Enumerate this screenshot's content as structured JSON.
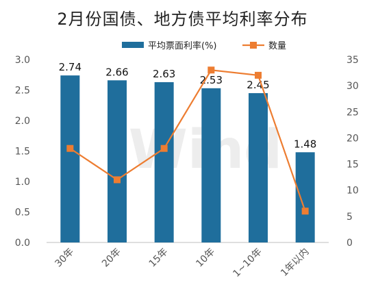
{
  "chart_data": {
    "type": "bar",
    "title": "2月份国债、地方债平均利率分布",
    "categories": [
      "30年",
      "20年",
      "15年",
      "10年",
      "1~10年",
      "1年以内"
    ],
    "series": [
      {
        "name": "平均票面利率(%)",
        "type": "bar",
        "axis": "left",
        "values": [
          2.74,
          2.66,
          2.63,
          2.53,
          2.45,
          1.48
        ],
        "color": "#1f6e9c"
      },
      {
        "name": "数量",
        "type": "line",
        "axis": "right",
        "values": [
          18,
          12,
          18,
          33,
          32,
          6
        ],
        "color": "#ed7d31"
      }
    ],
    "data_labels": [
      "2.74",
      "2.66",
      "2.63",
      "2.53",
      "2.45",
      "1.48"
    ],
    "y_left": {
      "min": 0,
      "max": 3.0,
      "ticks": [
        "0.0",
        "0.5",
        "1.0",
        "1.5",
        "2.0",
        "2.5",
        "3.0"
      ]
    },
    "y_right": {
      "min": 0,
      "max": 35,
      "ticks": [
        "0",
        "5",
        "10",
        "15",
        "20",
        "25",
        "30",
        "35"
      ]
    },
    "legend_position": "top",
    "grid": false,
    "watermark": "Wind"
  }
}
